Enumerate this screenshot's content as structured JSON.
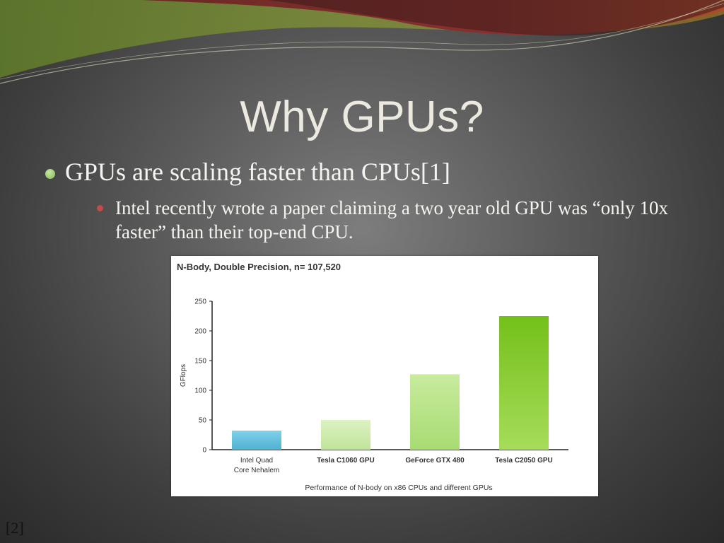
{
  "slide": {
    "title": "Why GPUs?",
    "bullet_level1": "GPUs are scaling faster than CPUs[1]",
    "bullet_level2": "Intel recently wrote a paper claiming a two year old GPU was “only 10x faster” than their top-end CPU.",
    "reference_mark": "[2]"
  },
  "colors": {
    "cpu_bar": "#5fbfdc",
    "gpu_bar_light": "#cdebb0",
    "gpu_bar_dark": "#78c21e",
    "title_text": "#ebe9e0"
  },
  "chart_data": {
    "type": "bar",
    "title": "N-Body, Double Precision, n= 107,520",
    "ylabel": "GFlops",
    "caption": "Performance of N-body on x86 CPUs and different GPUs",
    "ylim": [
      0,
      250
    ],
    "yticks": [
      "0",
      "50",
      "100",
      "150",
      "200",
      "250"
    ],
    "categories": [
      [
        "Intel Quad",
        "Core Nehalem"
      ],
      [
        "Tesla C1060 GPU"
      ],
      [
        "GeForce GTX 480"
      ],
      [
        "Tesla C2050 GPU"
      ]
    ],
    "values": [
      32,
      50,
      127,
      225
    ],
    "grid": false
  }
}
